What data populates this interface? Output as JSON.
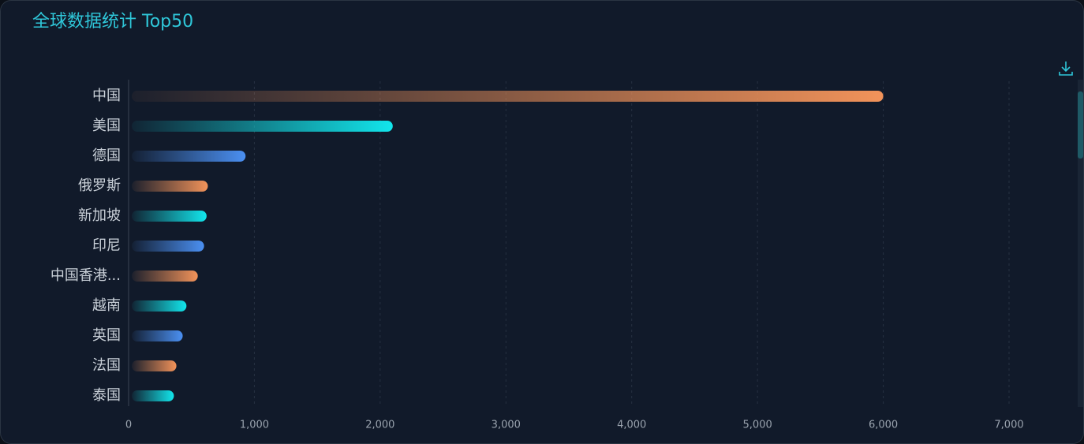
{
  "chart_data": {
    "type": "hbar",
    "title": "全球数据统计 Top50",
    "categories": [
      "中国",
      "美国",
      "德国",
      "俄罗斯",
      "新加坡",
      "印尼",
      "中国香港...",
      "越南",
      "英国",
      "法国",
      "泰国"
    ],
    "values": [
      6000,
      2100,
      930,
      630,
      620,
      600,
      550,
      460,
      430,
      380,
      360
    ],
    "colors": [
      "#f2935a",
      "#12e6ec",
      "#4b90f2"
    ],
    "xlim": [
      0,
      7000
    ],
    "xticks": [
      0,
      {
        "value": 1000,
        "label": "1,000"
      },
      {
        "value": 2000,
        "label": "2,000"
      },
      {
        "value": 3000,
        "label": "3,000"
      },
      {
        "value": 4000,
        "label": "4,000"
      },
      {
        "value": 5000,
        "label": "5,000"
      },
      {
        "value": 6000,
        "label": "6,000"
      },
      {
        "value": 7000,
        "label": "7,000"
      }
    ],
    "grid": true
  }
}
